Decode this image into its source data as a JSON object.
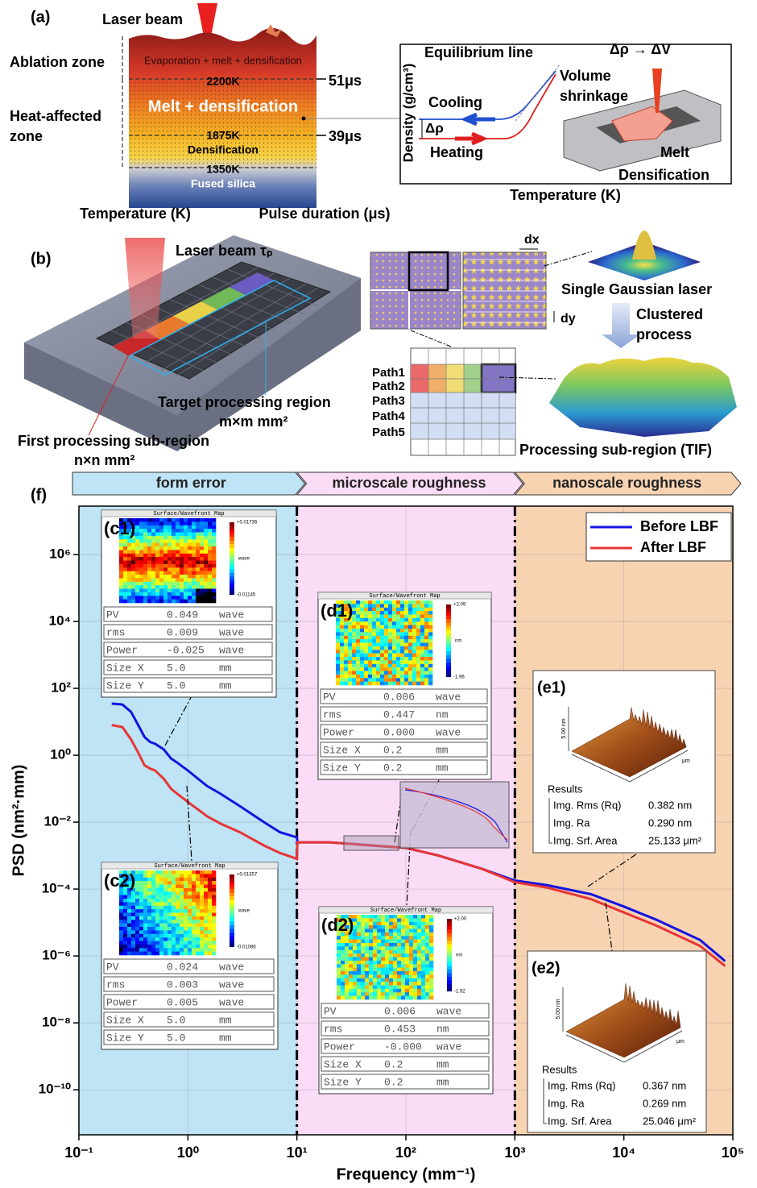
{
  "panel_a": {
    "label": "(a)",
    "laser": "Laser beam",
    "ablation_zone": "Ablation zone",
    "heat_zone": [
      "Heat-affected",
      "zone"
    ],
    "layers": [
      "Evaporation + melt + densification",
      "2200K",
      "Melt + densification",
      "1875K",
      "Densification",
      "1350K",
      "Fused silica"
    ],
    "times": [
      "51μs",
      "39μs"
    ],
    "x_label_left": "Temperature (K)",
    "x_label_right": "Pulse duration (μs)",
    "inset": {
      "y_label": "Density (g/cm³)",
      "x_label": "Temperature (K)",
      "equilibrium": "Equilibrium line",
      "shrinkage": [
        "Volume",
        "shrinkage"
      ],
      "cooling": "Cooling",
      "delta": "Δρ",
      "heating": "Heating",
      "relation": "Δρ → ΔV",
      "melt": "Melt",
      "densification": "Densification"
    }
  },
  "panel_b": {
    "label": "(b)",
    "laser": "Laser beam  τₚ",
    "target": [
      "Target processing region",
      "m×m mm²"
    ],
    "first": [
      "First processing sub-region",
      "n×n mm²"
    ],
    "dx": "dx",
    "dy": "dy",
    "gaussian": "Single Gaussian laser",
    "clustered": [
      "Clustered",
      "process"
    ],
    "paths": [
      "Path1",
      "Path2",
      "Path3",
      "Path4",
      "Path5"
    ],
    "tif": "Processing sub-region (TIF)"
  },
  "chart_data": {
    "type": "line",
    "label": "(f)",
    "x_label": "Frequency (mm⁻¹)",
    "y_label": "PSD (nm²·mm)",
    "xscale": "log",
    "yscale": "log",
    "grid": true,
    "legend": "top-right",
    "xlim": [
      0.1,
      100000
    ],
    "ylim": [
      4.5e-12,
      28000000.0
    ],
    "xticks": [
      {
        "value": 0.1,
        "label": "10⁻¹"
      },
      {
        "value": 1,
        "label": "10⁰"
      },
      {
        "value": 10,
        "label": "10¹"
      },
      {
        "value": 100,
        "label": "10²"
      },
      {
        "value": 1000,
        "label": "10³"
      },
      {
        "value": 10000,
        "label": "10⁴"
      },
      {
        "value": 100000,
        "label": "10⁵"
      }
    ],
    "yticks": [
      {
        "value": 1e-10,
        "label": "10⁻¹⁰"
      },
      {
        "value": 1e-08,
        "label": "10⁻⁸"
      },
      {
        "value": 1e-06,
        "label": "10⁻⁶"
      },
      {
        "value": 0.0001,
        "label": "10⁻⁴"
      },
      {
        "value": 0.01,
        "label": "10⁻²"
      },
      {
        "value": 1,
        "label": "10⁰"
      },
      {
        "value": 100,
        "label": "10²"
      },
      {
        "value": 10000,
        "label": "10⁴"
      },
      {
        "value": 1000000,
        "label": "10⁶"
      }
    ],
    "regions": [
      {
        "label": "form error",
        "from": 0.1,
        "to": 10,
        "color": "#bfe4f6"
      },
      {
        "label": "microscale roughness",
        "from": 10,
        "to": 1000,
        "color": "#fadcf6"
      },
      {
        "label": "nanoscale roughness",
        "from": 1000,
        "to": 100000,
        "color": "#f8d3b2"
      }
    ],
    "x": [
      0.2,
      0.25,
      0.3,
      0.35,
      0.4,
      0.45,
      0.5,
      0.6,
      0.7,
      0.8,
      1,
      1.5,
      2,
      3,
      5,
      7,
      10,
      10.1,
      20,
      50,
      100,
      200,
      500,
      1000,
      2000,
      5000,
      10000,
      20000,
      50000,
      85000
    ],
    "series": [
      {
        "name": "Before LBF",
        "color": "#1414e0",
        "values": [
          35,
          33,
          20,
          8,
          3.5,
          2.5,
          2.2,
          1.5,
          0.8,
          0.6,
          0.35,
          0.12,
          0.07,
          0.03,
          0.01,
          0.005,
          0.0035,
          0.0025,
          0.0025,
          0.002,
          0.0017,
          0.001,
          0.0004,
          0.00018,
          0.00013,
          7e-05,
          3e-05,
          1.2e-05,
          3e-06,
          7e-07
        ]
      },
      {
        "name": "After LBF",
        "color": "#e83535",
        "values": [
          8,
          7,
          3,
          1.2,
          0.5,
          0.4,
          0.35,
          0.2,
          0.1,
          0.07,
          0.04,
          0.015,
          0.009,
          0.005,
          0.002,
          0.0012,
          0.0008,
          0.0025,
          0.0025,
          0.002,
          0.0017,
          0.001,
          0.0004,
          0.00016,
          0.00011,
          5e-05,
          2e-05,
          8e-06,
          2e-06,
          5e-07
        ]
      }
    ],
    "maps": [
      {
        "label": "(c1)",
        "header": "Surface/Wavefront Map",
        "scale_max": "+0.01736",
        "scale_min": "-0.01145",
        "unit": "wave",
        "rows": [
          [
            "PV",
            "0.049",
            "wave"
          ],
          [
            "rms",
            "0.009",
            "wave"
          ],
          [
            "Power",
            "-0.025",
            "wave"
          ],
          [
            "Size X",
            "5.0",
            "mm"
          ],
          [
            "Size Y",
            "5.0",
            "mm"
          ]
        ]
      },
      {
        "label": "(c2)",
        "header": "Surface/Wavefront Map",
        "scale_max": "+0.01357",
        "scale_min": "-0.01086",
        "unit": "wave",
        "rows": [
          [
            "PV",
            "0.024",
            "wave"
          ],
          [
            "rms",
            "0.003",
            "wave"
          ],
          [
            "Power",
            "0.005",
            "wave"
          ],
          [
            "Size X",
            "5.0",
            "mm"
          ],
          [
            "Size Y",
            "5.0",
            "mm"
          ]
        ]
      },
      {
        "label": "(d1)",
        "header": "Surface/Wavefront Map",
        "scale_max": "+2.09",
        "scale_min": "-1.96",
        "unit": "nm",
        "rows": [
          [
            "PV",
            "0.006",
            "wave"
          ],
          [
            "rms",
            "0.447",
            "nm"
          ],
          [
            "Power",
            "0.000",
            "wave"
          ],
          [
            "Size X",
            "0.2",
            "mm"
          ],
          [
            "Size Y",
            "0.2",
            "mm"
          ]
        ]
      },
      {
        "label": "(d2)",
        "header": "Surface/Wavefront Map",
        "scale_max": "+2.00",
        "scale_min": "-1.92",
        "unit": "nm",
        "rows": [
          [
            "PV",
            "0.006",
            "wave"
          ],
          [
            "rms",
            "0.453",
            "nm"
          ],
          [
            "Power",
            "-0.000",
            "wave"
          ],
          [
            "Size X",
            "0.2",
            "mm"
          ],
          [
            "Size Y",
            "0.2",
            "mm"
          ]
        ]
      }
    ],
    "afm": [
      {
        "label": "(e1)",
        "z_label": "5.00 nm",
        "unit": "μm",
        "results": "Results",
        "rows": [
          [
            "Img. Rms (Rq)",
            "0.382 nm"
          ],
          [
            "Img. Ra",
            "0.290 nm"
          ],
          [
            "Img. Srf. Area",
            "25.133 μm²"
          ]
        ]
      },
      {
        "label": "(e2)",
        "z_label": "5.00 nm",
        "unit": "μm",
        "results": "Results",
        "rows": [
          [
            "Img. Rms (Rq)",
            "0.367 nm"
          ],
          [
            "Img. Ra",
            "0.269 nm"
          ],
          [
            "Img. Srf. Area",
            "25.046 μm²"
          ]
        ]
      }
    ]
  }
}
